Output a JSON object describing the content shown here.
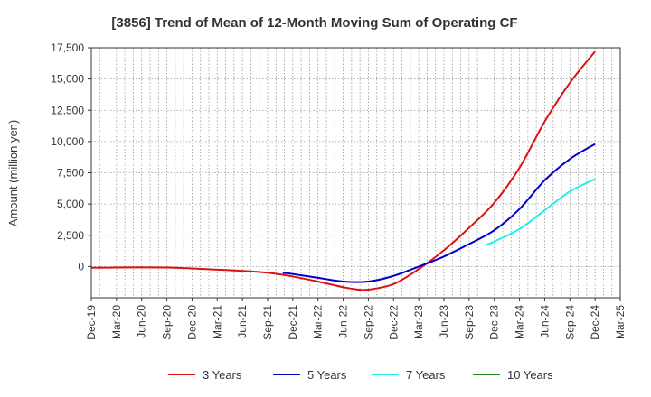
{
  "chart_data": {
    "type": "line",
    "title": "[3856]  Trend of Mean of 12-Month Moving Sum of Operating CF",
    "xlabel": "",
    "ylabel": "Amount (million yen)",
    "ylim": [
      -2500,
      17500
    ],
    "y_ticks": [
      0,
      2500,
      5000,
      7500,
      10000,
      12500,
      15000,
      17500
    ],
    "y_tick_labels": [
      "0",
      "2,500",
      "5,000",
      "7,500",
      "10,000",
      "12,500",
      "15,000",
      "17,500"
    ],
    "x_tick_labels": [
      "Dec-19",
      "Mar-20",
      "Jun-20",
      "Sep-20",
      "Dec-20",
      "Mar-21",
      "Jun-21",
      "Sep-21",
      "Dec-21",
      "Mar-22",
      "Jun-22",
      "Sep-22",
      "Dec-22",
      "Mar-23",
      "Jun-23",
      "Sep-23",
      "Dec-23",
      "Mar-24",
      "Jun-24",
      "Sep-24",
      "Dec-24",
      "Mar-25"
    ],
    "grid": true,
    "legend_position": "bottom",
    "series": [
      {
        "name": "3 Years",
        "color": "#dd1111",
        "points": [
          [
            0,
            -100
          ],
          [
            1,
            -80
          ],
          [
            2,
            -70
          ],
          [
            3,
            -80
          ],
          [
            4,
            -150
          ],
          [
            5,
            -250
          ],
          [
            6,
            -350
          ],
          [
            7,
            -500
          ],
          [
            8,
            -800
          ],
          [
            9,
            -1200
          ],
          [
            10,
            -1650
          ],
          [
            10.5,
            -1820
          ],
          [
            11,
            -1850
          ],
          [
            12,
            -1400
          ],
          [
            13,
            -200
          ],
          [
            14,
            1300
          ],
          [
            15,
            3100
          ],
          [
            16,
            5100
          ],
          [
            17,
            7900
          ],
          [
            18,
            11600
          ],
          [
            19,
            14700
          ],
          [
            20,
            17200
          ]
        ]
      },
      {
        "name": "5 Years",
        "color": "#0000cc",
        "points": [
          [
            7.6,
            -500
          ],
          [
            8,
            -600
          ],
          [
            9,
            -900
          ],
          [
            10,
            -1200
          ],
          [
            11,
            -1200
          ],
          [
            12,
            -750
          ],
          [
            13,
            0
          ],
          [
            14,
            800
          ],
          [
            15,
            1800
          ],
          [
            16,
            2900
          ],
          [
            17,
            4600
          ],
          [
            18,
            6900
          ],
          [
            19,
            8600
          ],
          [
            20,
            9800
          ]
        ]
      },
      {
        "name": "7 Years",
        "color": "#22eeee",
        "points": [
          [
            15.7,
            1750
          ],
          [
            16,
            2000
          ],
          [
            17,
            3000
          ],
          [
            18,
            4500
          ],
          [
            19,
            6000
          ],
          [
            20,
            7000
          ]
        ]
      },
      {
        "name": "10 Years",
        "color": "#228822",
        "points": []
      }
    ]
  }
}
